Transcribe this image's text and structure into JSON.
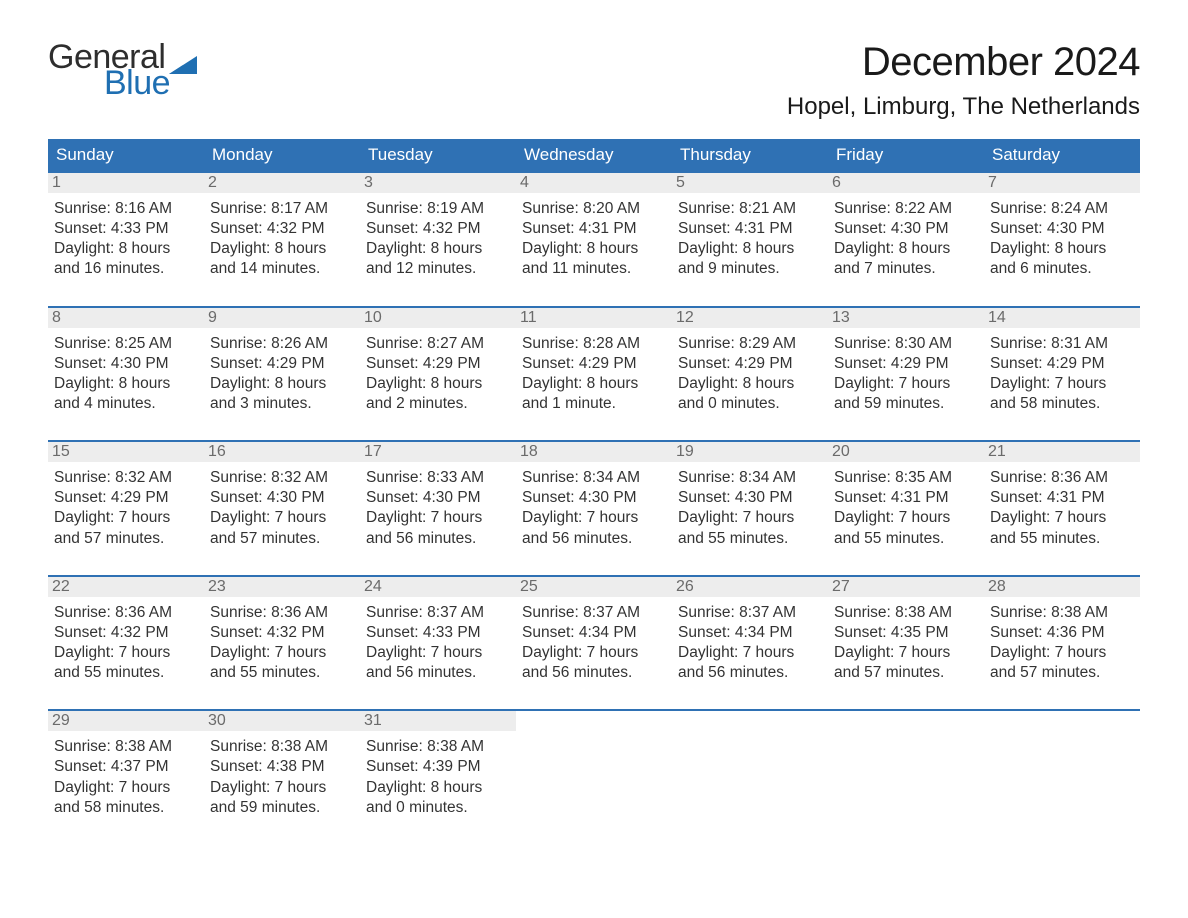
{
  "logo": {
    "top": "General",
    "bottom": "Blue",
    "flag_color": "#1f6fb2"
  },
  "title": "December 2024",
  "location": "Hopel, Limburg, The Netherlands",
  "colors": {
    "header_bg": "#2f71b4",
    "header_text": "#ffffff",
    "week_border": "#2f71b4",
    "daynum_bg": "#ededed",
    "daynum_text": "#6b6b6b",
    "body_text": "#333333",
    "background": "#ffffff"
  },
  "weekdays": [
    "Sunday",
    "Monday",
    "Tuesday",
    "Wednesday",
    "Thursday",
    "Friday",
    "Saturday"
  ],
  "weeks": [
    [
      {
        "n": "1",
        "sunrise": "8:16 AM",
        "sunset": "4:33 PM",
        "dl1": "Daylight: 8 hours",
        "dl2": "and 16 minutes."
      },
      {
        "n": "2",
        "sunrise": "8:17 AM",
        "sunset": "4:32 PM",
        "dl1": "Daylight: 8 hours",
        "dl2": "and 14 minutes."
      },
      {
        "n": "3",
        "sunrise": "8:19 AM",
        "sunset": "4:32 PM",
        "dl1": "Daylight: 8 hours",
        "dl2": "and 12 minutes."
      },
      {
        "n": "4",
        "sunrise": "8:20 AM",
        "sunset": "4:31 PM",
        "dl1": "Daylight: 8 hours",
        "dl2": "and 11 minutes."
      },
      {
        "n": "5",
        "sunrise": "8:21 AM",
        "sunset": "4:31 PM",
        "dl1": "Daylight: 8 hours",
        "dl2": "and 9 minutes."
      },
      {
        "n": "6",
        "sunrise": "8:22 AM",
        "sunset": "4:30 PM",
        "dl1": "Daylight: 8 hours",
        "dl2": "and 7 minutes."
      },
      {
        "n": "7",
        "sunrise": "8:24 AM",
        "sunset": "4:30 PM",
        "dl1": "Daylight: 8 hours",
        "dl2": "and 6 minutes."
      }
    ],
    [
      {
        "n": "8",
        "sunrise": "8:25 AM",
        "sunset": "4:30 PM",
        "dl1": "Daylight: 8 hours",
        "dl2": "and 4 minutes."
      },
      {
        "n": "9",
        "sunrise": "8:26 AM",
        "sunset": "4:29 PM",
        "dl1": "Daylight: 8 hours",
        "dl2": "and 3 minutes."
      },
      {
        "n": "10",
        "sunrise": "8:27 AM",
        "sunset": "4:29 PM",
        "dl1": "Daylight: 8 hours",
        "dl2": "and 2 minutes."
      },
      {
        "n": "11",
        "sunrise": "8:28 AM",
        "sunset": "4:29 PM",
        "dl1": "Daylight: 8 hours",
        "dl2": "and 1 minute."
      },
      {
        "n": "12",
        "sunrise": "8:29 AM",
        "sunset": "4:29 PM",
        "dl1": "Daylight: 8 hours",
        "dl2": "and 0 minutes."
      },
      {
        "n": "13",
        "sunrise": "8:30 AM",
        "sunset": "4:29 PM",
        "dl1": "Daylight: 7 hours",
        "dl2": "and 59 minutes."
      },
      {
        "n": "14",
        "sunrise": "8:31 AM",
        "sunset": "4:29 PM",
        "dl1": "Daylight: 7 hours",
        "dl2": "and 58 minutes."
      }
    ],
    [
      {
        "n": "15",
        "sunrise": "8:32 AM",
        "sunset": "4:29 PM",
        "dl1": "Daylight: 7 hours",
        "dl2": "and 57 minutes."
      },
      {
        "n": "16",
        "sunrise": "8:32 AM",
        "sunset": "4:30 PM",
        "dl1": "Daylight: 7 hours",
        "dl2": "and 57 minutes."
      },
      {
        "n": "17",
        "sunrise": "8:33 AM",
        "sunset": "4:30 PM",
        "dl1": "Daylight: 7 hours",
        "dl2": "and 56 minutes."
      },
      {
        "n": "18",
        "sunrise": "8:34 AM",
        "sunset": "4:30 PM",
        "dl1": "Daylight: 7 hours",
        "dl2": "and 56 minutes."
      },
      {
        "n": "19",
        "sunrise": "8:34 AM",
        "sunset": "4:30 PM",
        "dl1": "Daylight: 7 hours",
        "dl2": "and 55 minutes."
      },
      {
        "n": "20",
        "sunrise": "8:35 AM",
        "sunset": "4:31 PM",
        "dl1": "Daylight: 7 hours",
        "dl2": "and 55 minutes."
      },
      {
        "n": "21",
        "sunrise": "8:36 AM",
        "sunset": "4:31 PM",
        "dl1": "Daylight: 7 hours",
        "dl2": "and 55 minutes."
      }
    ],
    [
      {
        "n": "22",
        "sunrise": "8:36 AM",
        "sunset": "4:32 PM",
        "dl1": "Daylight: 7 hours",
        "dl2": "and 55 minutes."
      },
      {
        "n": "23",
        "sunrise": "8:36 AM",
        "sunset": "4:32 PM",
        "dl1": "Daylight: 7 hours",
        "dl2": "and 55 minutes."
      },
      {
        "n": "24",
        "sunrise": "8:37 AM",
        "sunset": "4:33 PM",
        "dl1": "Daylight: 7 hours",
        "dl2": "and 56 minutes."
      },
      {
        "n": "25",
        "sunrise": "8:37 AM",
        "sunset": "4:34 PM",
        "dl1": "Daylight: 7 hours",
        "dl2": "and 56 minutes."
      },
      {
        "n": "26",
        "sunrise": "8:37 AM",
        "sunset": "4:34 PM",
        "dl1": "Daylight: 7 hours",
        "dl2": "and 56 minutes."
      },
      {
        "n": "27",
        "sunrise": "8:38 AM",
        "sunset": "4:35 PM",
        "dl1": "Daylight: 7 hours",
        "dl2": "and 57 minutes."
      },
      {
        "n": "28",
        "sunrise": "8:38 AM",
        "sunset": "4:36 PM",
        "dl1": "Daylight: 7 hours",
        "dl2": "and 57 minutes."
      }
    ],
    [
      {
        "n": "29",
        "sunrise": "8:38 AM",
        "sunset": "4:37 PM",
        "dl1": "Daylight: 7 hours",
        "dl2": "and 58 minutes."
      },
      {
        "n": "30",
        "sunrise": "8:38 AM",
        "sunset": "4:38 PM",
        "dl1": "Daylight: 7 hours",
        "dl2": "and 59 minutes."
      },
      {
        "n": "31",
        "sunrise": "8:38 AM",
        "sunset": "4:39 PM",
        "dl1": "Daylight: 8 hours",
        "dl2": "and 0 minutes."
      },
      null,
      null,
      null,
      null
    ]
  ],
  "labels": {
    "sunrise_prefix": "Sunrise: ",
    "sunset_prefix": "Sunset: "
  }
}
